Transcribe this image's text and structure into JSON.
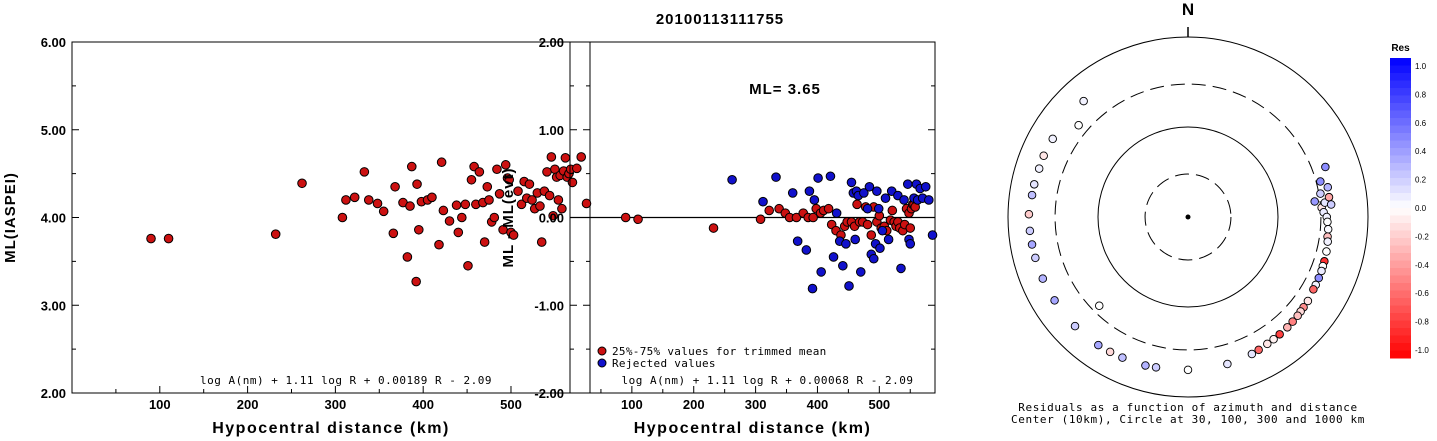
{
  "title": "20100113111755",
  "colors": {
    "accepted": "#cc1111",
    "rejected": "#1111cc",
    "axis": "#000000"
  },
  "chart_data": [
    {
      "type": "scatter",
      "name": "ml-vs-distance",
      "xlabel": "Hypocentral distance (km)",
      "ylabel": "ML(IASPEI)",
      "xlim": [
        0,
        590
      ],
      "ylim": [
        2.0,
        6.0
      ],
      "xticks": [
        "100",
        "200",
        "300",
        "400",
        "500"
      ],
      "yticks": [
        "2.00",
        "3.00",
        "4.00",
        "5.00",
        "6.00"
      ],
      "formula": "log A(nm) + 1.11 log R + 0.00189 R - 2.09",
      "series": [
        {
          "color": "#cc1111",
          "points": [
            [
              90,
              3.76
            ],
            [
              110,
              3.76
            ],
            [
              232,
              3.81
            ],
            [
              262,
              4.39
            ],
            [
              308,
              4.0
            ],
            [
              312,
              4.2
            ],
            [
              322,
              4.23
            ],
            [
              333,
              4.52
            ],
            [
              338,
              4.2
            ],
            [
              348,
              4.16
            ],
            [
              355,
              4.07
            ],
            [
              366,
              3.82
            ],
            [
              368,
              4.35
            ],
            [
              377,
              4.17
            ],
            [
              382,
              3.55
            ],
            [
              385,
              4.13
            ],
            [
              387,
              4.58
            ],
            [
              392,
              3.27
            ],
            [
              393,
              4.38
            ],
            [
              395,
              3.86
            ],
            [
              398,
              4.18
            ],
            [
              405,
              4.2
            ],
            [
              410,
              4.23
            ],
            [
              418,
              3.69
            ],
            [
              421,
              4.63
            ],
            [
              423,
              4.08
            ],
            [
              430,
              3.96
            ],
            [
              438,
              4.14
            ],
            [
              440,
              3.83
            ],
            [
              444,
              4.0
            ],
            [
              448,
              4.15
            ],
            [
              451,
              3.45
            ],
            [
              455,
              4.43
            ],
            [
              458,
              4.58
            ],
            [
              460,
              4.15
            ],
            [
              464,
              4.52
            ],
            [
              468,
              4.17
            ],
            [
              470,
              3.72
            ],
            [
              473,
              4.35
            ],
            [
              475,
              4.2
            ],
            [
              478,
              3.95
            ],
            [
              481,
              4.0
            ],
            [
              484,
              4.55
            ],
            [
              487,
              4.27
            ],
            [
              491,
              3.86
            ],
            [
              494,
              4.6
            ],
            [
              496,
              4.45
            ],
            [
              498,
              4.43
            ],
            [
              500,
              3.83
            ],
            [
              503,
              3.8
            ],
            [
              508,
              4.3
            ],
            [
              512,
              4.15
            ],
            [
              515,
              4.41
            ],
            [
              518,
              4.22
            ],
            [
              521,
              4.38
            ],
            [
              524,
              4.2
            ],
            [
              527,
              4.1
            ],
            [
              530,
              4.28
            ],
            [
              533,
              4.13
            ],
            [
              535,
              3.72
            ],
            [
              538,
              4.3
            ],
            [
              541,
              4.52
            ],
            [
              544,
              4.25
            ],
            [
              546,
              4.69
            ],
            [
              548,
              4.02
            ],
            [
              550,
              4.55
            ],
            [
              552,
              4.46
            ],
            [
              554,
              4.2
            ],
            [
              556,
              4.48
            ],
            [
              558,
              4.1
            ],
            [
              560,
              4.53
            ],
            [
              562,
              4.68
            ],
            [
              564,
              4.46
            ],
            [
              566,
              4.5
            ],
            [
              568,
              4.55
            ],
            [
              570,
              4.4
            ],
            [
              575,
              4.56
            ],
            [
              580,
              4.69
            ],
            [
              586,
              4.16
            ]
          ]
        }
      ]
    },
    {
      "type": "scatter",
      "name": "ml-residual-vs-distance",
      "xlabel": "Hypocentral distance (km)",
      "ylabel": "ML - ML(evt)",
      "xlim": [
        0,
        590
      ],
      "ylim": [
        -2.0,
        2.0
      ],
      "xticks": [
        "100",
        "200",
        "300",
        "400",
        "500"
      ],
      "yticks": [
        "-2.00",
        "-1.00",
        "0.00",
        "1.00",
        "2.00"
      ],
      "annotation": "ML= 3.65",
      "formula": "log A(nm) + 1.11 log R + 0.00068 R - 2.09",
      "legend": [
        "25%-75% values for trimmed mean",
        "Rejected values"
      ],
      "series": [
        {
          "name": "25%-75% values for trimmed mean",
          "color": "#cc1111",
          "points": [
            [
              90,
              0.0
            ],
            [
              110,
              -0.02
            ],
            [
              232,
              -0.12
            ],
            [
              308,
              -0.02
            ],
            [
              322,
              0.08
            ],
            [
              338,
              0.1
            ],
            [
              348,
              0.05
            ],
            [
              355,
              0.0
            ],
            [
              366,
              0.0
            ],
            [
              377,
              0.05
            ],
            [
              385,
              0.0
            ],
            [
              393,
              0.0
            ],
            [
              398,
              0.1
            ],
            [
              405,
              0.05
            ],
            [
              410,
              0.08
            ],
            [
              418,
              0.1
            ],
            [
              423,
              -0.08
            ],
            [
              430,
              -0.15
            ],
            [
              438,
              -0.2
            ],
            [
              444,
              -0.1
            ],
            [
              448,
              -0.05
            ],
            [
              455,
              -0.05
            ],
            [
              460,
              -0.1
            ],
            [
              464,
              0.15
            ],
            [
              468,
              -0.05
            ],
            [
              473,
              -0.05
            ],
            [
              478,
              0.12
            ],
            [
              481,
              -0.08
            ],
            [
              487,
              -0.2
            ],
            [
              491,
              0.12
            ],
            [
              496,
              -0.05
            ],
            [
              500,
              0.02
            ],
            [
              503,
              -0.12
            ],
            [
              508,
              -0.1
            ],
            [
              512,
              -0.15
            ],
            [
              518,
              -0.03
            ],
            [
              521,
              0.08
            ],
            [
              524,
              -0.05
            ],
            [
              527,
              -0.1
            ],
            [
              530,
              -0.05
            ],
            [
              533,
              -0.12
            ],
            [
              538,
              -0.15
            ],
            [
              541,
              -0.08
            ],
            [
              544,
              0.1
            ],
            [
              548,
              0.05
            ],
            [
              550,
              -0.12
            ],
            [
              552,
              0.1
            ],
            [
              554,
              0.15
            ],
            [
              556,
              0.15
            ],
            [
              558,
              0.12
            ]
          ]
        },
        {
          "name": "Rejected values",
          "color": "#1111cc",
          "points": [
            [
              262,
              0.43
            ],
            [
              312,
              0.18
            ],
            [
              333,
              0.46
            ],
            [
              360,
              0.28
            ],
            [
              368,
              -0.27
            ],
            [
              382,
              -0.37
            ],
            [
              387,
              0.3
            ],
            [
              392,
              -0.81
            ],
            [
              395,
              0.2
            ],
            [
              401,
              0.45
            ],
            [
              406,
              -0.62
            ],
            [
              421,
              0.47
            ],
            [
              426,
              -0.45
            ],
            [
              431,
              0.05
            ],
            [
              436,
              -0.27
            ],
            [
              441,
              -0.55
            ],
            [
              446,
              -0.3
            ],
            [
              451,
              -0.78
            ],
            [
              455,
              0.4
            ],
            [
              458,
              0.28
            ],
            [
              461,
              -0.25
            ],
            [
              463,
              0.3
            ],
            [
              466,
              0.25
            ],
            [
              470,
              -0.62
            ],
            [
              475,
              0.28
            ],
            [
              481,
              0.1
            ],
            [
              484,
              0.35
            ],
            [
              487,
              -0.42
            ],
            [
              491,
              -0.47
            ],
            [
              494,
              -0.3
            ],
            [
              496,
              0.3
            ],
            [
              499,
              0.1
            ],
            [
              501,
              -0.35
            ],
            [
              505,
              -0.15
            ],
            [
              510,
              0.22
            ],
            [
              515,
              -0.25
            ],
            [
              520,
              0.3
            ],
            [
              530,
              0.25
            ],
            [
              535,
              -0.58
            ],
            [
              540,
              0.2
            ],
            [
              546,
              0.38
            ],
            [
              548,
              -0.25
            ],
            [
              550,
              -0.3
            ],
            [
              556,
              0.22
            ],
            [
              560,
              0.38
            ],
            [
              562,
              0.2
            ],
            [
              566,
              0.33
            ],
            [
              570,
              0.22
            ],
            [
              575,
              0.35
            ],
            [
              580,
              0.2
            ],
            [
              586,
              -0.2
            ]
          ]
        }
      ]
    },
    {
      "type": "scatter",
      "name": "residual-polar",
      "north_label": "N",
      "caption_line1": "Residuals as a function of azimuth and distance",
      "caption_line2": "Center (10km), Circle at 30, 100, 300 and 1000 km",
      "colorbar_title": "Res",
      "colorbar_ticks": [
        "1.0",
        "0.8",
        "0.6",
        "0.4",
        "0.2",
        "0.0",
        "-0.2",
        "-0.4",
        "-0.6",
        "-0.8",
        "-1.0"
      ],
      "circles_km": [
        30,
        100,
        300,
        1000
      ],
      "rmax_km": 1000,
      "points_az_dist_res": [
        [
          83,
          262,
          0.4
        ],
        [
          86,
          308,
          -0.1
        ],
        [
          80,
          312,
          0.2
        ],
        [
          88,
          322,
          0.08
        ],
        [
          75,
          333,
          0.45
        ],
        [
          84,
          338,
          0.1
        ],
        [
          90,
          348,
          0.05
        ],
        [
          92,
          355,
          0.0
        ],
        [
          95,
          366,
          0.02
        ],
        [
          98,
          368,
          -0.25
        ],
        [
          100,
          377,
          0.05
        ],
        [
          82,
          382,
          -0.35
        ],
        [
          104,
          385,
          0.0
        ],
        [
          78,
          387,
          0.3
        ],
        [
          108,
          392,
          -0.8
        ],
        [
          110,
          393,
          0.0
        ],
        [
          85,
          395,
          0.2
        ],
        [
          112,
          398,
          0.08
        ],
        [
          115,
          401,
          0.45
        ],
        [
          118,
          405,
          0.05
        ],
        [
          120,
          406,
          -0.6
        ],
        [
          70,
          421,
          0.45
        ],
        [
          125,
          423,
          -0.1
        ],
        [
          128,
          426,
          -0.45
        ],
        [
          130,
          430,
          -0.15
        ],
        [
          132,
          436,
          -0.25
        ],
        [
          135,
          441,
          -0.5
        ],
        [
          138,
          446,
          -0.3
        ],
        [
          142,
          451,
          -0.75
        ],
        [
          145,
          455,
          -0.05
        ],
        [
          148,
          460,
          -0.1
        ],
        [
          152,
          470,
          -0.6
        ],
        [
          155,
          478,
          0.1
        ],
        [
          165,
          491,
          0.1
        ],
        [
          180,
          500,
          0.0
        ],
        [
          192,
          510,
          0.2
        ],
        [
          196,
          520,
          0.3
        ],
        [
          205,
          530,
          0.25
        ],
        [
          210,
          538,
          -0.15
        ],
        [
          215,
          546,
          0.35
        ],
        [
          226,
          556,
          0.2
        ],
        [
          238,
          560,
          0.35
        ],
        [
          247,
          566,
          0.3
        ],
        [
          255,
          570,
          0.2
        ],
        [
          260,
          575,
          0.35
        ],
        [
          265,
          580,
          0.2
        ],
        [
          271,
          586,
          -0.2
        ],
        [
          278,
          562,
          0.25
        ],
        [
          282,
          558,
          0.1
        ],
        [
          288,
          548,
          0.05
        ],
        [
          293,
          552,
          -0.1
        ],
        [
          300,
          544,
          0.05
        ],
        [
          318,
          541,
          0.05
        ],
        [
          310,
          386,
          0.0
        ],
        [
          225,
          248,
          0.0
        ]
      ]
    }
  ]
}
